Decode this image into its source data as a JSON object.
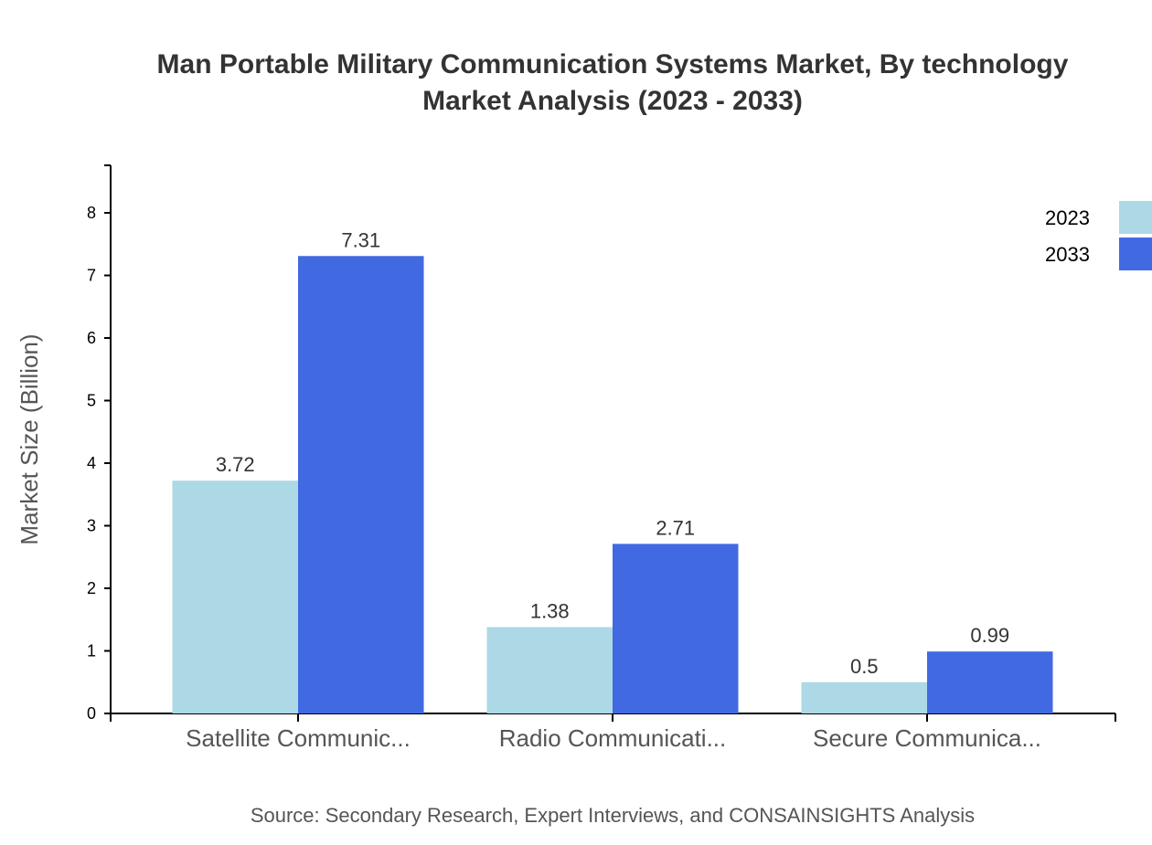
{
  "chart_data": {
    "type": "bar",
    "title": "Man Portable Military Communication Systems Market, By technology",
    "subtitle": "Market Analysis (2023 - 2033)",
    "xlabel": "",
    "ylabel": "Market Size (Billion)",
    "ylim": [
      0,
      8.76
    ],
    "yticks": [
      0,
      1,
      2,
      3,
      4,
      5,
      6,
      7,
      8
    ],
    "grid": false,
    "legend_placement": "top-right",
    "categories": [
      "Satellite Communic...",
      "Radio Communicati...",
      "Secure Communica..."
    ],
    "series": [
      {
        "name": "2023",
        "color": "#add8e6",
        "values": [
          3.72,
          1.38,
          0.5
        ]
      },
      {
        "name": "2033",
        "color": "#4169e1",
        "values": [
          7.31,
          2.71,
          0.99
        ]
      }
    ],
    "source": "Source: Secondary Research, Expert Interviews, and CONSAINSIGHTS Analysis"
  }
}
